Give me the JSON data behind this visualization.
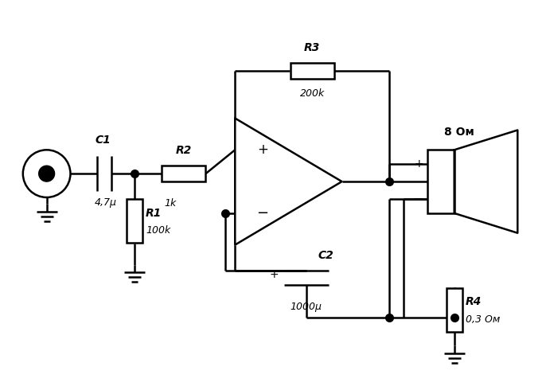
{
  "background_color": "#ffffff",
  "line_color": "#000000",
  "line_width": 1.8,
  "dot_size": 7,
  "fig_width": 6.91,
  "fig_height": 4.9,
  "dpi": 100,
  "labels": {
    "C1": "C1",
    "C1_val": "4,7μ",
    "R1": "R1",
    "R1_val": "100k",
    "R2": "R2",
    "R2_val": "1k",
    "R3": "R3",
    "R3_val": "200k",
    "C2": "C2",
    "C2_val": "1000μ",
    "R4": "R4",
    "R4_val": "0,3 Ом",
    "spk": "8 Ом",
    "plus": "+",
    "minus": "−"
  }
}
